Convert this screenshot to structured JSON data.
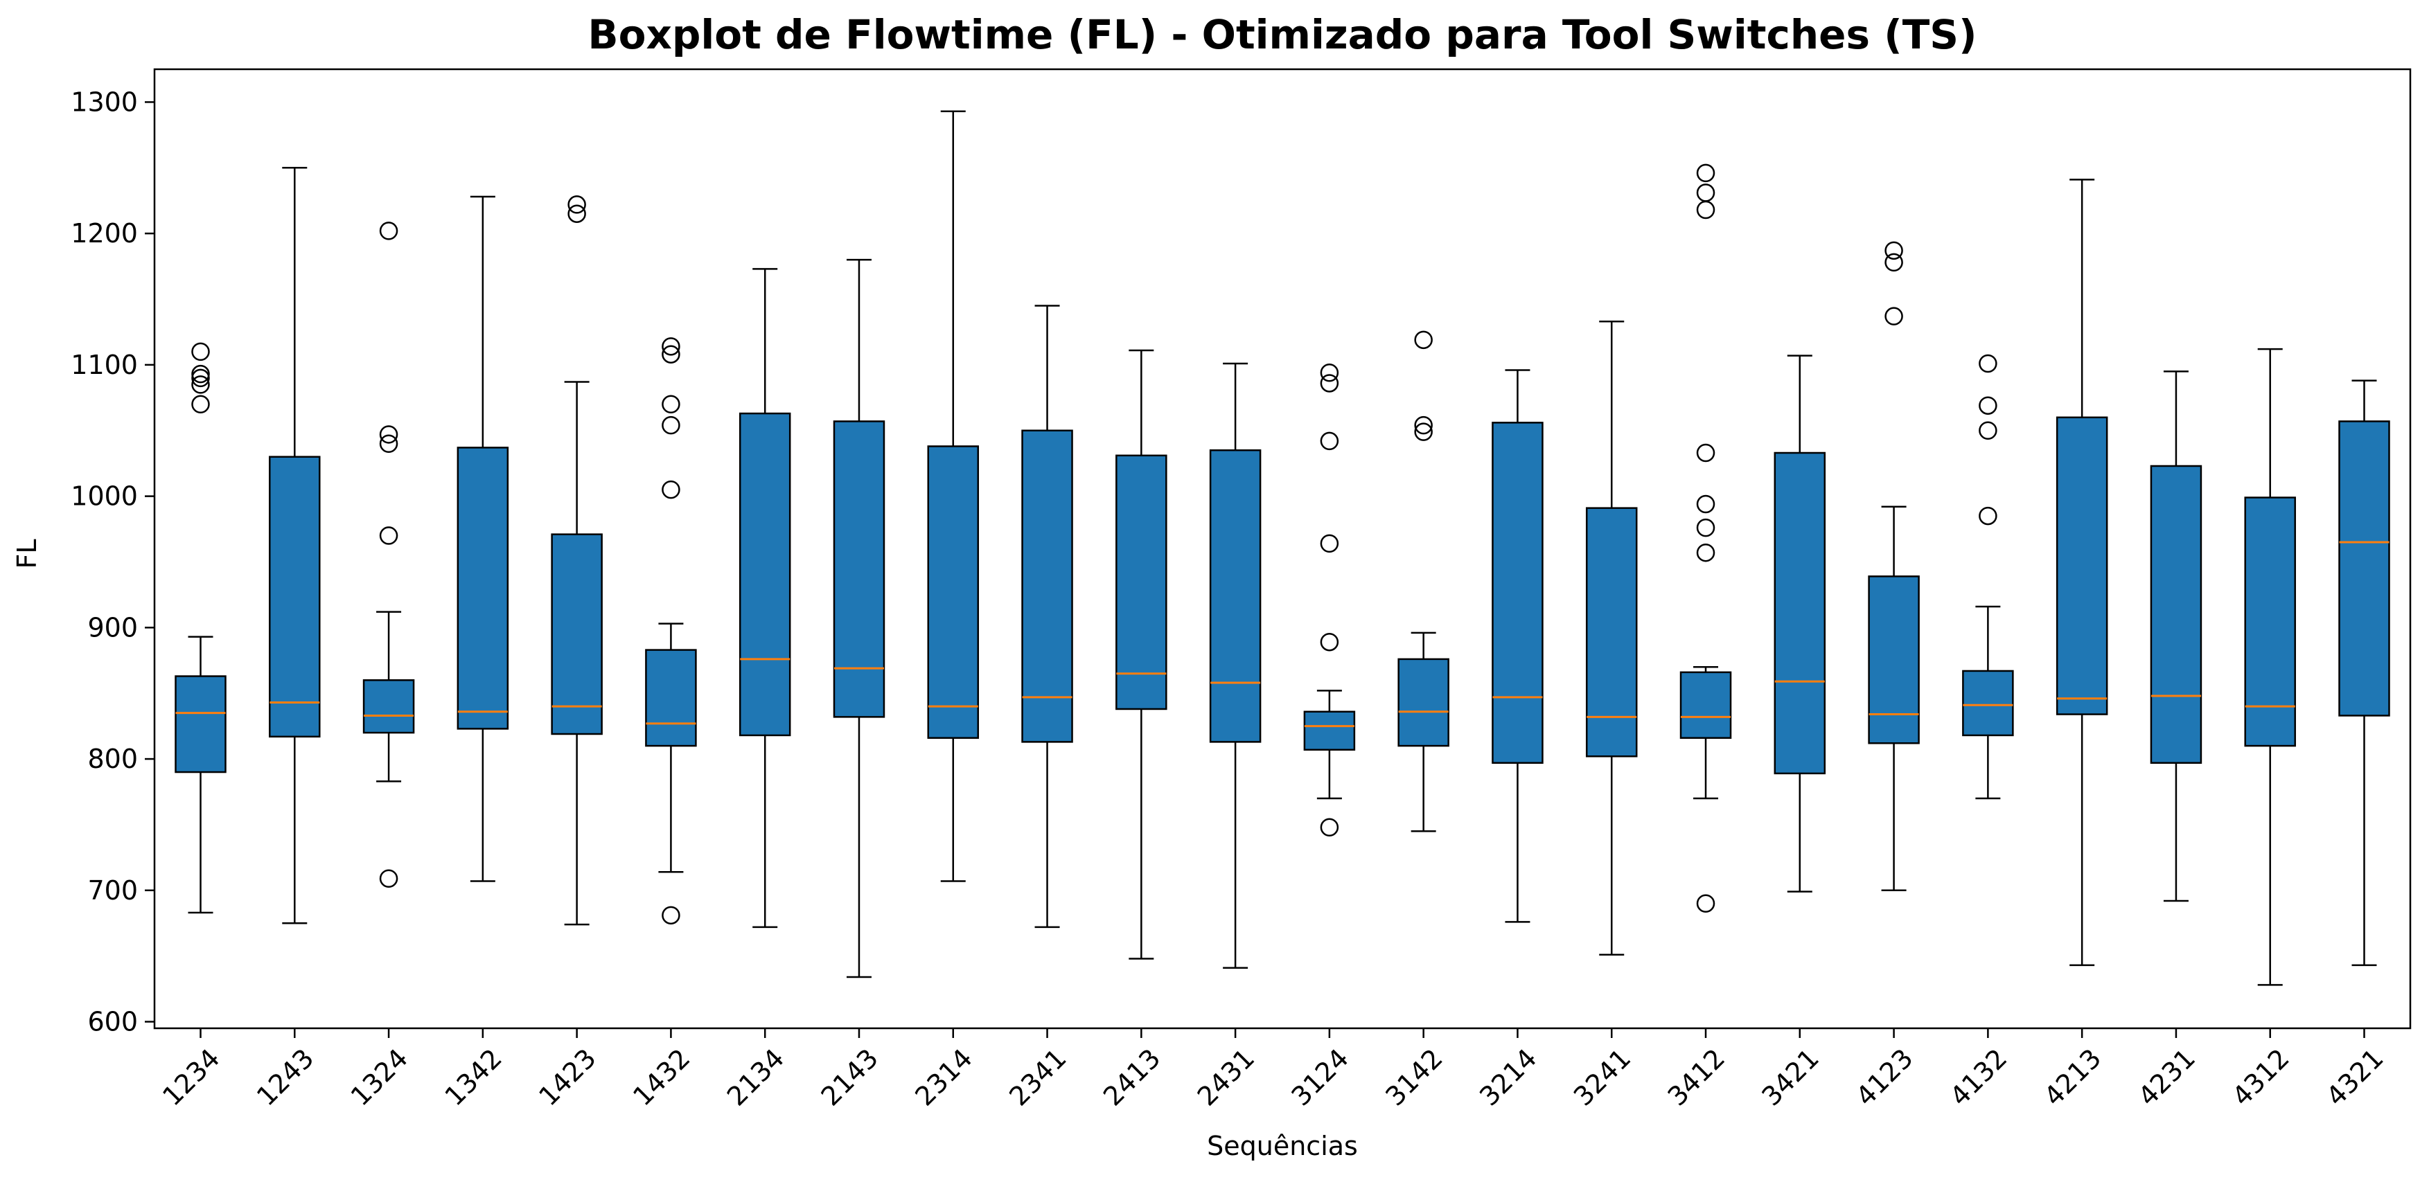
{
  "chart_data": {
    "type": "boxplot",
    "title": "Boxplot de Flowtime (FL) - Otimizado para Tool Switches (TS)",
    "xlabel": "Sequências",
    "ylabel": "FL",
    "ylim": [
      595,
      1325
    ],
    "yticks": [
      "600",
      "700",
      "800",
      "900",
      "1000",
      "1100",
      "1200",
      "1300"
    ],
    "grid": false,
    "colors": {
      "box_fill": "#1f77b4",
      "median": "#ff7f0e",
      "line": "#000000"
    },
    "categories": [
      "1234",
      "1243",
      "1324",
      "1342",
      "1423",
      "1432",
      "2134",
      "2143",
      "2314",
      "2341",
      "2413",
      "2431",
      "3124",
      "3142",
      "3214",
      "3241",
      "3412",
      "3421",
      "4123",
      "4132",
      "4213",
      "4231",
      "4312",
      "4321"
    ],
    "boxes": [
      {
        "label": "1234",
        "whislo": 683,
        "q1": 790,
        "med": 835,
        "q3": 863,
        "whishi": 893,
        "fliers": [
          1070,
          1085,
          1090,
          1093,
          1110
        ]
      },
      {
        "label": "1243",
        "whislo": 675,
        "q1": 817,
        "med": 843,
        "q3": 1030,
        "whishi": 1250,
        "fliers": []
      },
      {
        "label": "1324",
        "whislo": 783,
        "q1": 820,
        "med": 833,
        "q3": 860,
        "whishi": 912,
        "fliers": [
          709,
          970,
          1040,
          1047,
          1202
        ]
      },
      {
        "label": "1342",
        "whislo": 707,
        "q1": 823,
        "med": 836,
        "q3": 1037,
        "whishi": 1228,
        "fliers": []
      },
      {
        "label": "1423",
        "whislo": 674,
        "q1": 819,
        "med": 840,
        "q3": 971,
        "whishi": 1087,
        "fliers": [
          1215,
          1222
        ]
      },
      {
        "label": "1432",
        "whislo": 714,
        "q1": 810,
        "med": 827,
        "q3": 883,
        "whishi": 903,
        "fliers": [
          681,
          1005,
          1054,
          1070,
          1108,
          1114
        ]
      },
      {
        "label": "2134",
        "whislo": 672,
        "q1": 818,
        "med": 876,
        "q3": 1063,
        "whishi": 1173,
        "fliers": []
      },
      {
        "label": "2143",
        "whislo": 634,
        "q1": 832,
        "med": 869,
        "q3": 1057,
        "whishi": 1180,
        "fliers": []
      },
      {
        "label": "2314",
        "whislo": 707,
        "q1": 816,
        "med": 840,
        "q3": 1038,
        "whishi": 1293,
        "fliers": []
      },
      {
        "label": "2341",
        "whislo": 672,
        "q1": 813,
        "med": 847,
        "q3": 1050,
        "whishi": 1145,
        "fliers": []
      },
      {
        "label": "2413",
        "whislo": 648,
        "q1": 838,
        "med": 865,
        "q3": 1031,
        "whishi": 1111,
        "fliers": []
      },
      {
        "label": "2431",
        "whislo": 641,
        "q1": 813,
        "med": 858,
        "q3": 1035,
        "whishi": 1101,
        "fliers": []
      },
      {
        "label": "3124",
        "whislo": 770,
        "q1": 807,
        "med": 825,
        "q3": 836,
        "whishi": 852,
        "fliers": [
          748,
          889,
          964,
          1042,
          1086,
          1094
        ]
      },
      {
        "label": "3142",
        "whislo": 745,
        "q1": 810,
        "med": 836,
        "q3": 876,
        "whishi": 896,
        "fliers": [
          1049,
          1054,
          1119
        ]
      },
      {
        "label": "3214",
        "whislo": 676,
        "q1": 797,
        "med": 847,
        "q3": 1056,
        "whishi": 1096,
        "fliers": []
      },
      {
        "label": "3241",
        "whislo": 651,
        "q1": 802,
        "med": 832,
        "q3": 991,
        "whishi": 1133,
        "fliers": []
      },
      {
        "label": "3412",
        "whislo": 770,
        "q1": 816,
        "med": 832,
        "q3": 866,
        "whishi": 870,
        "fliers": [
          690,
          957,
          976,
          994,
          1033,
          1218,
          1231,
          1246
        ]
      },
      {
        "label": "3421",
        "whislo": 699,
        "q1": 789,
        "med": 859,
        "q3": 1033,
        "whishi": 1107,
        "fliers": []
      },
      {
        "label": "4123",
        "whislo": 700,
        "q1": 812,
        "med": 834,
        "q3": 939,
        "whishi": 992,
        "fliers": [
          1137,
          1178,
          1187
        ]
      },
      {
        "label": "4132",
        "whislo": 770,
        "q1": 818,
        "med": 841,
        "q3": 867,
        "whishi": 916,
        "fliers": [
          985,
          1050,
          1069,
          1101
        ]
      },
      {
        "label": "4213",
        "whislo": 643,
        "q1": 834,
        "med": 846,
        "q3": 1060,
        "whishi": 1241,
        "fliers": []
      },
      {
        "label": "4231",
        "whislo": 692,
        "q1": 797,
        "med": 848,
        "q3": 1023,
        "whishi": 1095,
        "fliers": []
      },
      {
        "label": "4312",
        "whislo": 628,
        "q1": 810,
        "med": 840,
        "q3": 999,
        "whishi": 1112,
        "fliers": []
      },
      {
        "label": "4321",
        "whislo": 643,
        "q1": 833,
        "med": 965,
        "q3": 1057,
        "whishi": 1088,
        "fliers": []
      }
    ]
  }
}
